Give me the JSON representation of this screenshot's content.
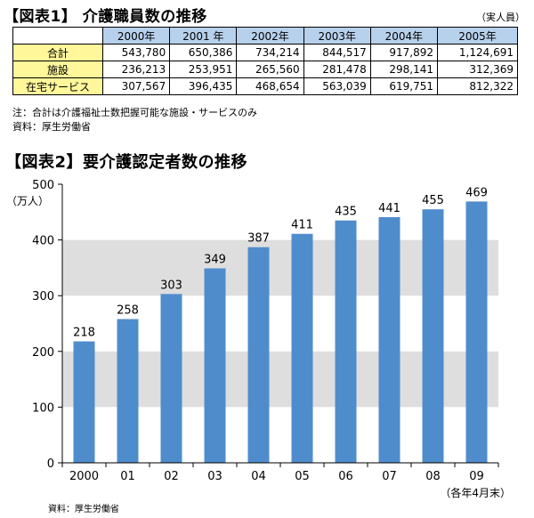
{
  "table1": {
    "title": "【図表1】 介護職員数の推移",
    "unit": "（実人員）",
    "columns": [
      "2000年",
      "2001 年",
      "2002年",
      "2003年",
      "2004年",
      "2005年"
    ],
    "rows": [
      {
        "label": "合計",
        "values": [
          "543,780",
          "650,386",
          "734,214",
          "844,517",
          "917,892",
          "1,124,691"
        ]
      },
      {
        "label": "施設",
        "values": [
          "236,213",
          "253,951",
          "265,560",
          "281,478",
          "298,141",
          "312,369"
        ]
      },
      {
        "label": "在宅サービス",
        "values": [
          "307,567",
          "396,435",
          "468,654",
          "563,039",
          "619,751",
          "812,322"
        ]
      }
    ],
    "note": "注：合計は介護福祉士数把握可能な施設・サービスのみ",
    "source": "資料：厚生労働省"
  },
  "chart_data": {
    "type": "bar",
    "title": "【図表2】要介護認定者数の推移",
    "ylabel": "（万人）",
    "categories": [
      "2000",
      "01",
      "02",
      "03",
      "04",
      "05",
      "06",
      "07",
      "08",
      "09"
    ],
    "values": [
      218,
      258,
      303,
      349,
      387,
      411,
      435,
      441,
      455,
      469
    ],
    "ylim": [
      0,
      500
    ],
    "yticks": [
      0,
      100,
      200,
      300,
      400,
      500
    ],
    "bar_color": "#4f8ccc",
    "band_color": "#dedede",
    "xnote": "（各年4月末）",
    "source": "資料：厚生労働省"
  }
}
